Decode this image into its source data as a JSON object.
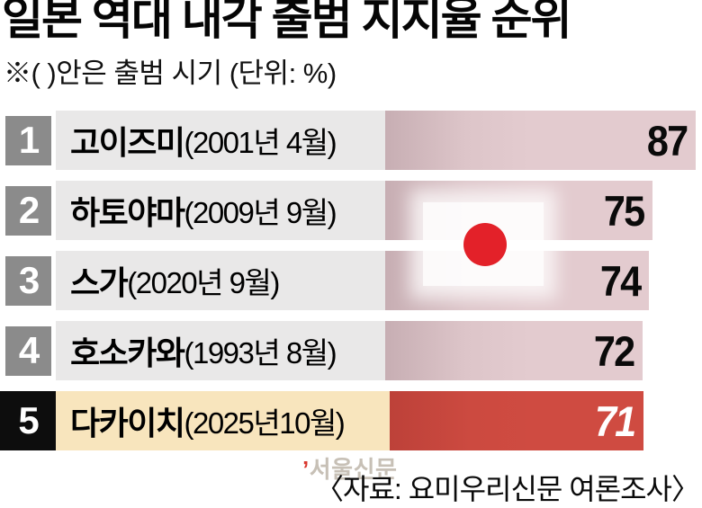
{
  "header": {
    "title": "일본 역대 내각 출범 지지율 순위",
    "note": "※(  )안은 출범 시기  (단위: %)"
  },
  "chart_data": {
    "type": "bar",
    "orientation": "horizontal",
    "title": "일본 역대 내각 출범 지지율 순위",
    "unit": "%",
    "value_axis_max": 87,
    "categories": [
      "고이즈미",
      "하토야마",
      "스가",
      "호소카와",
      "다카이치"
    ],
    "values": [
      87,
      75,
      74,
      72,
      71
    ],
    "rows": [
      {
        "rank": "1",
        "name": "고이즈미",
        "period": "(2001년 4월)",
        "value": "87",
        "highlight": false
      },
      {
        "rank": "2",
        "name": "하토야마",
        "period": "(2009년 9월)",
        "value": "75",
        "highlight": false
      },
      {
        "rank": "3",
        "name": "스가",
        "period": "(2020년 9월)",
        "value": "74",
        "highlight": false
      },
      {
        "rank": "4",
        "name": "호소카와",
        "period": "(1993년 8월)",
        "value": "72",
        "highlight": false
      },
      {
        "rank": "5",
        "name": "다카이치",
        "period": "(2025년10월)",
        "value": "71",
        "highlight": true
      }
    ],
    "colors": {
      "bar_pink": "#e3cbcf",
      "bar_pink_edge": "#c7aeb3",
      "bar_highlight_red": "#cf4b41",
      "rank_badge_gray": "#8b8b8b",
      "rank_badge_black": "#0d0d0d",
      "label_bg_gray": "#e9e8e8",
      "label_bg_cream": "#f8e5bd",
      "flag_sun_red": "#e32129"
    },
    "legend": "none",
    "grid": "off"
  },
  "flag": {
    "icon": "japan-flag"
  },
  "footer": {
    "watermark_mark": "’",
    "watermark_text": "서울신문",
    "source": "〈자료: 요미우리신문 여론조사〉"
  }
}
